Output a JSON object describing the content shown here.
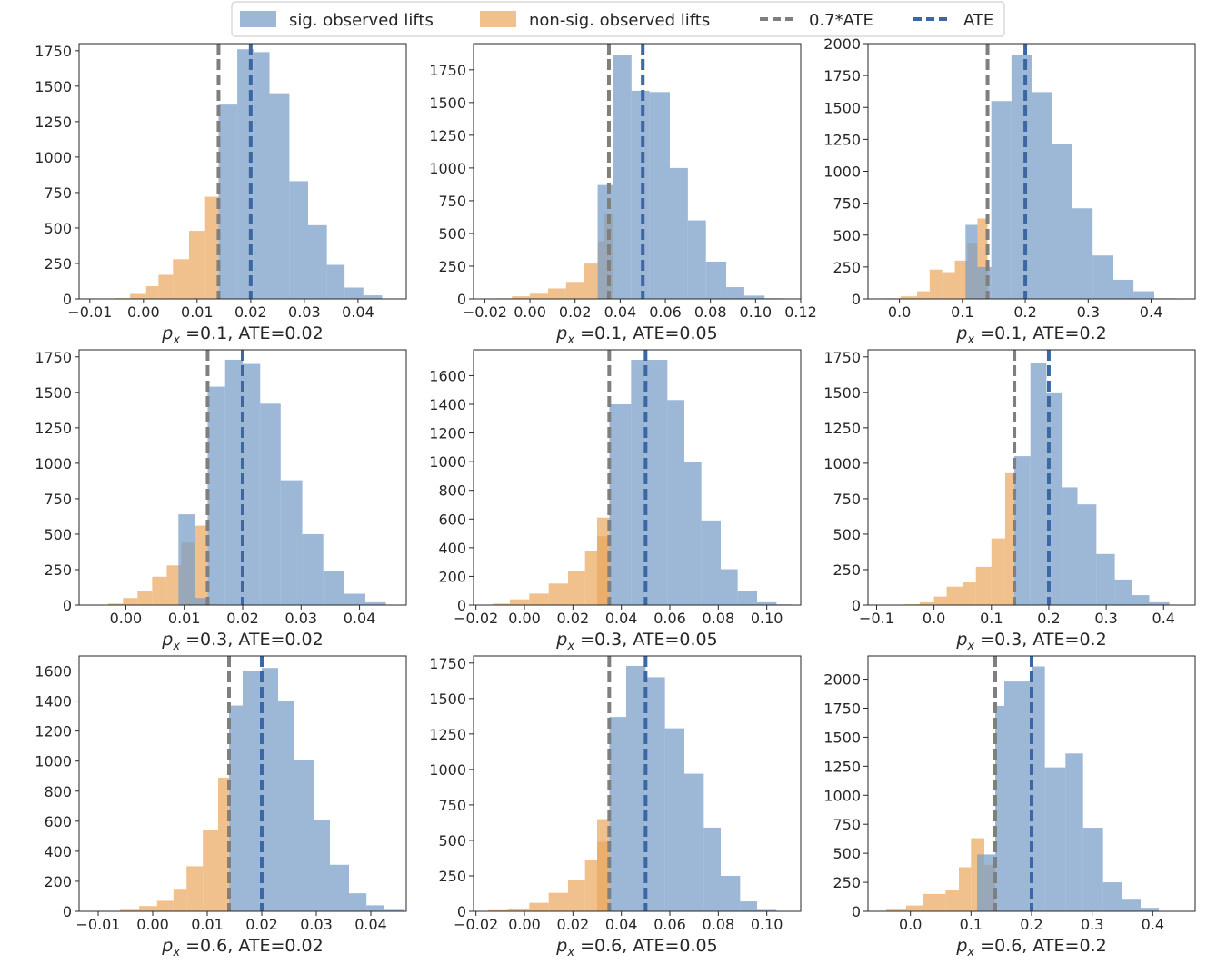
{
  "legend": {
    "sig_label": "sig. observed lifts",
    "nonsig_label": "non-sig. observed lifts",
    "ate07_label": "0.7*ATE",
    "ate_label": "ATE"
  },
  "colors": {
    "sig": "#7c9fc8",
    "nonsig": "#eaa65c",
    "ate07": "#7f7f7f",
    "ate": "#3b67a5"
  },
  "chart_data": [
    {
      "type": "bar",
      "title_px": "0.1",
      "title_ate": "0.02",
      "ate": 0.02,
      "ate07": 0.014,
      "xlim": [
        -0.012,
        0.049
      ],
      "ylim": [
        0,
        1800
      ],
      "xticks": [
        -0.01,
        0.0,
        0.01,
        0.02,
        0.03,
        0.04
      ],
      "xtick_labels": [
        "−0.01",
        "0.00",
        "0.01",
        "0.02",
        "0.03",
        "0.04"
      ],
      "yticks": [
        0,
        250,
        500,
        750,
        1000,
        1250,
        1500,
        1750
      ],
      "nonsig": [
        [
          -0.0055,
          -0.0025,
          5
        ],
        [
          -0.0025,
          0.0005,
          35
        ],
        [
          0.0005,
          0.0028,
          90
        ],
        [
          0.0028,
          0.0055,
          170
        ],
        [
          0.0055,
          0.0085,
          280
        ],
        [
          0.0085,
          0.0115,
          480
        ],
        [
          0.0115,
          0.014,
          720
        ]
      ],
      "sig": [
        [
          0.014,
          0.0175,
          1370
        ],
        [
          0.0175,
          0.0205,
          1760
        ],
        [
          0.0205,
          0.0235,
          1740
        ],
        [
          0.0235,
          0.0272,
          1450
        ],
        [
          0.0272,
          0.0307,
          830
        ],
        [
          0.0307,
          0.0342,
          520
        ],
        [
          0.0342,
          0.0375,
          240
        ],
        [
          0.0375,
          0.041,
          80
        ],
        [
          0.041,
          0.0445,
          25
        ]
      ]
    },
    {
      "type": "bar",
      "title_px": "0.1",
      "title_ate": "0.05",
      "ate": 0.05,
      "ate07": 0.035,
      "xlim": [
        -0.025,
        0.12
      ],
      "ylim": [
        0,
        1950
      ],
      "xticks": [
        -0.02,
        0.0,
        0.02,
        0.04,
        0.06,
        0.08,
        0.1,
        0.12
      ],
      "xtick_labels": [
        "−0.02",
        "0.00",
        "0.02",
        "0.04",
        "0.06",
        "0.08",
        "0.10",
        "0.12"
      ],
      "yticks": [
        0,
        250,
        500,
        750,
        1000,
        1250,
        1500,
        1750
      ],
      "nonsig": [
        [
          -0.015,
          -0.008,
          5
        ],
        [
          -0.008,
          0.0,
          20
        ],
        [
          0.0,
          0.008,
          40
        ],
        [
          0.008,
          0.016,
          80
        ],
        [
          0.016,
          0.024,
          130
        ],
        [
          0.024,
          0.03,
          270
        ],
        [
          0.03,
          0.033,
          440
        ],
        [
          0.033,
          0.037,
          650
        ]
      ],
      "sig": [
        [
          0.03,
          0.037,
          870
        ],
        [
          0.037,
          0.045,
          1860
        ],
        [
          0.045,
          0.053,
          1590
        ],
        [
          0.053,
          0.062,
          1580
        ],
        [
          0.062,
          0.07,
          1000
        ],
        [
          0.07,
          0.078,
          600
        ],
        [
          0.078,
          0.087,
          285
        ],
        [
          0.087,
          0.095,
          90
        ],
        [
          0.095,
          0.104,
          25
        ],
        [
          0.104,
          0.112,
          5
        ]
      ]
    },
    {
      "type": "bar",
      "title_px": "0.1",
      "title_ate": "0.2",
      "ate": 0.2,
      "ate07": 0.14,
      "xlim": [
        -0.05,
        0.47
      ],
      "ylim": [
        0,
        2000
      ],
      "xticks": [
        0.0,
        0.1,
        0.2,
        0.3,
        0.4
      ],
      "xtick_labels": [
        "0.0",
        "0.1",
        "0.2",
        "0.3",
        "0.4"
      ],
      "yticks": [
        0,
        250,
        500,
        750,
        1000,
        1250,
        1500,
        1750,
        2000
      ],
      "nonsig": [
        [
          -0.028,
          0.002,
          5
        ],
        [
          0.002,
          0.028,
          20
        ],
        [
          0.028,
          0.048,
          60
        ],
        [
          0.048,
          0.068,
          230
        ],
        [
          0.068,
          0.088,
          210
        ],
        [
          0.088,
          0.108,
          300
        ],
        [
          0.108,
          0.124,
          440
        ],
        [
          0.124,
          0.14,
          630
        ]
      ],
      "sig": [
        [
          0.105,
          0.124,
          580
        ],
        [
          0.124,
          0.146,
          250
        ],
        [
          0.146,
          0.178,
          1550
        ],
        [
          0.178,
          0.21,
          1910
        ],
        [
          0.21,
          0.242,
          1620
        ],
        [
          0.242,
          0.275,
          1210
        ],
        [
          0.275,
          0.307,
          710
        ],
        [
          0.307,
          0.34,
          340
        ],
        [
          0.34,
          0.372,
          150
        ],
        [
          0.372,
          0.405,
          60
        ],
        [
          0.405,
          0.44,
          5
        ]
      ]
    },
    {
      "type": "bar",
      "title_px": "0.3",
      "title_ate": "0.02",
      "ate": 0.02,
      "ate07": 0.014,
      "xlim": [
        -0.008,
        0.048
      ],
      "ylim": [
        0,
        1800
      ],
      "xticks": [
        0.0,
        0.01,
        0.02,
        0.03,
        0.04
      ],
      "xtick_labels": [
        "0.00",
        "0.01",
        "0.02",
        "0.03",
        "0.04"
      ],
      "yticks": [
        0,
        250,
        500,
        750,
        1000,
        1250,
        1500,
        1750
      ],
      "nonsig": [
        [
          -0.003,
          -0.0005,
          10
        ],
        [
          -0.0005,
          0.002,
          50
        ],
        [
          0.002,
          0.0045,
          100
        ],
        [
          0.0045,
          0.007,
          200
        ],
        [
          0.007,
          0.0095,
          280
        ],
        [
          0.0095,
          0.0118,
          440
        ],
        [
          0.0118,
          0.014,
          560
        ]
      ],
      "sig": [
        [
          0.009,
          0.0118,
          640
        ],
        [
          0.0118,
          0.0137,
          50
        ],
        [
          0.014,
          0.017,
          1540
        ],
        [
          0.017,
          0.02,
          1730
        ],
        [
          0.02,
          0.023,
          1700
        ],
        [
          0.023,
          0.0265,
          1420
        ],
        [
          0.0265,
          0.0302,
          880
        ],
        [
          0.0302,
          0.0338,
          500
        ],
        [
          0.0338,
          0.0373,
          240
        ],
        [
          0.0373,
          0.041,
          80
        ],
        [
          0.041,
          0.0445,
          20
        ]
      ]
    },
    {
      "type": "bar",
      "title_px": "0.3",
      "title_ate": "0.05",
      "ate": 0.05,
      "ate07": 0.035,
      "xlim": [
        -0.021,
        0.114
      ],
      "ylim": [
        0,
        1780
      ],
      "xticks": [
        -0.02,
        0.0,
        0.02,
        0.04,
        0.06,
        0.08,
        0.1
      ],
      "xtick_labels": [
        "−0.02",
        "0.00",
        "0.02",
        "0.04",
        "0.06",
        "0.08",
        "0.10"
      ],
      "yticks": [
        0,
        200,
        400,
        600,
        800,
        1000,
        1200,
        1400,
        1600
      ],
      "nonsig": [
        [
          -0.013,
          -0.006,
          10
        ],
        [
          -0.006,
          0.002,
          40
        ],
        [
          0.002,
          0.01,
          80
        ],
        [
          0.01,
          0.018,
          150
        ],
        [
          0.018,
          0.025,
          240
        ],
        [
          0.025,
          0.03,
          380
        ],
        [
          0.03,
          0.035,
          480
        ],
        [
          0.03,
          0.035,
          610
        ]
      ],
      "sig": [
        [
          0.035,
          0.044,
          1400
        ],
        [
          0.044,
          0.05,
          1710
        ],
        [
          0.05,
          0.059,
          1710
        ],
        [
          0.059,
          0.066,
          1430
        ],
        [
          0.066,
          0.073,
          1000
        ],
        [
          0.073,
          0.081,
          590
        ],
        [
          0.081,
          0.088,
          250
        ],
        [
          0.088,
          0.096,
          100
        ],
        [
          0.096,
          0.104,
          20
        ],
        [
          0.104,
          0.11,
          5
        ]
      ]
    },
    {
      "type": "bar",
      "title_px": "0.3",
      "title_ate": "0.2",
      "ate": 0.2,
      "ate07": 0.14,
      "xlim": [
        -0.115,
        0.455
      ],
      "ylim": [
        0,
        1800
      ],
      "xticks": [
        -0.1,
        0.0,
        0.1,
        0.2,
        0.3,
        0.4
      ],
      "xtick_labels": [
        "−0.1",
        "0.0",
        "0.1",
        "0.2",
        "0.3",
        "0.4"
      ],
      "yticks": [
        0,
        250,
        500,
        750,
        1000,
        1250,
        1500,
        1750
      ],
      "nonsig": [
        [
          -0.05,
          -0.025,
          5
        ],
        [
          -0.025,
          0.0,
          20
        ],
        [
          0.0,
          0.022,
          60
        ],
        [
          0.022,
          0.05,
          130
        ],
        [
          0.05,
          0.073,
          160
        ],
        [
          0.073,
          0.1,
          270
        ],
        [
          0.1,
          0.124,
          470
        ],
        [
          0.124,
          0.14,
          930
        ]
      ],
      "sig": [
        [
          0.14,
          0.168,
          1050
        ],
        [
          0.168,
          0.196,
          1710
        ],
        [
          0.196,
          0.224,
          1500
        ],
        [
          0.224,
          0.25,
          830
        ],
        [
          0.25,
          0.283,
          710
        ],
        [
          0.283,
          0.315,
          360
        ],
        [
          0.315,
          0.345,
          180
        ],
        [
          0.345,
          0.375,
          70
        ],
        [
          0.375,
          0.41,
          20
        ]
      ]
    },
    {
      "type": "bar",
      "title_px": "0.6",
      "title_ate": "0.02",
      "ate": 0.02,
      "ate07": 0.014,
      "xlim": [
        -0.0135,
        0.0465
      ],
      "ylim": [
        0,
        1700
      ],
      "xticks": [
        -0.01,
        0.0,
        0.01,
        0.02,
        0.03,
        0.04
      ],
      "xtick_labels": [
        "−0.01",
        "0.00",
        "0.01",
        "0.02",
        "0.03",
        "0.04"
      ],
      "yticks": [
        0,
        200,
        400,
        600,
        800,
        1000,
        1200,
        1400,
        1600
      ],
      "nonsig": [
        [
          -0.009,
          -0.006,
          3
        ],
        [
          -0.006,
          -0.0025,
          10
        ],
        [
          -0.0025,
          0.0008,
          35
        ],
        [
          0.0008,
          0.0038,
          70
        ],
        [
          0.0038,
          0.0062,
          150
        ],
        [
          0.0062,
          0.0092,
          300
        ],
        [
          0.0092,
          0.012,
          540
        ],
        [
          0.012,
          0.014,
          890
        ]
      ],
      "sig": [
        [
          0.014,
          0.0165,
          1370
        ],
        [
          0.0165,
          0.02,
          1600
        ],
        [
          0.02,
          0.023,
          1620
        ],
        [
          0.023,
          0.026,
          1400
        ],
        [
          0.026,
          0.0295,
          1010
        ],
        [
          0.0295,
          0.0325,
          610
        ],
        [
          0.0325,
          0.036,
          310
        ],
        [
          0.036,
          0.0392,
          120
        ],
        [
          0.0392,
          0.0425,
          40
        ],
        [
          0.0425,
          0.046,
          10
        ]
      ]
    },
    {
      "type": "bar",
      "title_px": "0.6",
      "title_ate": "0.05",
      "ate": 0.05,
      "ate07": 0.035,
      "xlim": [
        -0.021,
        0.114
      ],
      "ylim": [
        0,
        1800
      ],
      "xticks": [
        -0.02,
        0.0,
        0.02,
        0.04,
        0.06,
        0.08,
        0.1
      ],
      "xtick_labels": [
        "−0.02",
        "0.00",
        "0.02",
        "0.04",
        "0.06",
        "0.08",
        "0.10"
      ],
      "yticks": [
        0,
        250,
        500,
        750,
        1000,
        1250,
        1500,
        1750
      ],
      "nonsig": [
        [
          -0.015,
          -0.007,
          8
        ],
        [
          -0.007,
          0.002,
          20
        ],
        [
          0.002,
          0.01,
          60
        ],
        [
          0.01,
          0.018,
          130
        ],
        [
          0.018,
          0.025,
          220
        ],
        [
          0.025,
          0.03,
          360
        ],
        [
          0.03,
          0.035,
          490
        ],
        [
          0.03,
          0.035,
          650
        ]
      ],
      "sig": [
        [
          0.035,
          0.042,
          1370
        ],
        [
          0.042,
          0.05,
          1730
        ],
        [
          0.05,
          0.058,
          1650
        ],
        [
          0.058,
          0.066,
          1290
        ],
        [
          0.066,
          0.074,
          970
        ],
        [
          0.074,
          0.081,
          590
        ],
        [
          0.081,
          0.089,
          250
        ],
        [
          0.089,
          0.096,
          70
        ],
        [
          0.096,
          0.104,
          10
        ]
      ]
    },
    {
      "type": "bar",
      "title_px": "0.6",
      "title_ate": "0.2",
      "ate": 0.2,
      "ate07": 0.14,
      "xlim": [
        -0.07,
        0.47
      ],
      "ylim": [
        0,
        2200
      ],
      "xticks": [
        0.0,
        0.1,
        0.2,
        0.3,
        0.4
      ],
      "xtick_labels": [
        "0.0",
        "0.1",
        "0.2",
        "0.3",
        "0.4"
      ],
      "yticks": [
        0,
        250,
        500,
        750,
        1000,
        1250,
        1500,
        1750,
        2000
      ],
      "nonsig": [
        [
          -0.04,
          -0.007,
          15
        ],
        [
          -0.007,
          0.02,
          50
        ],
        [
          0.02,
          0.058,
          150
        ],
        [
          0.058,
          0.08,
          180
        ],
        [
          0.08,
          0.1,
          380
        ],
        [
          0.1,
          0.122,
          630
        ],
        [
          0.122,
          0.14,
          400
        ]
      ],
      "sig": [
        [
          0.11,
          0.14,
          490
        ],
        [
          0.14,
          0.155,
          1770
        ],
        [
          0.155,
          0.2,
          1980
        ],
        [
          0.2,
          0.222,
          2110
        ],
        [
          0.222,
          0.256,
          1240
        ],
        [
          0.256,
          0.285,
          1360
        ],
        [
          0.285,
          0.318,
          720
        ],
        [
          0.318,
          0.35,
          250
        ],
        [
          0.35,
          0.38,
          100
        ],
        [
          0.38,
          0.41,
          30
        ]
      ]
    }
  ]
}
